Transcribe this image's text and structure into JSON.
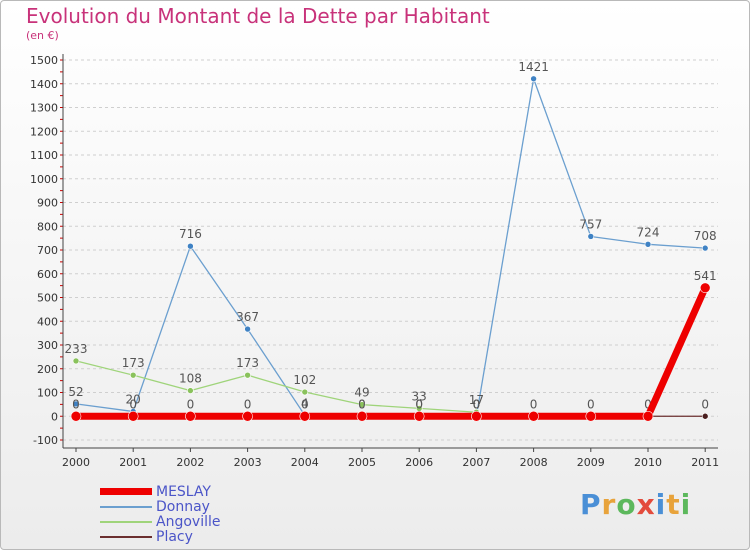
{
  "title": "Evolution du Montant de la Dette par Habitant",
  "subtitle": "(en €)",
  "logo": {
    "letters": [
      "P",
      "r",
      "o",
      "x",
      "i",
      "t",
      "i"
    ],
    "colors": [
      "#4a8fd6",
      "#e8a33b",
      "#5cb85c",
      "#e34b3c",
      "#4a8fd6",
      "#e8a33b",
      "#5cb85c"
    ]
  },
  "colors": {
    "title": "#c8327a",
    "axis_ticks": "#cc0000",
    "legend_text": "#4b55c8"
  },
  "chart_data": {
    "type": "line",
    "categories": [
      "2000",
      "2001",
      "2002",
      "2003",
      "2004",
      "2005",
      "2006",
      "2007",
      "2008",
      "2009",
      "2010",
      "2011"
    ],
    "ylim": [
      -100,
      1500
    ],
    "yticks": [
      -100,
      0,
      100,
      200,
      300,
      400,
      500,
      600,
      700,
      800,
      900,
      1000,
      1100,
      1200,
      1300,
      1400,
      1500
    ],
    "grid": "horizontal dashed",
    "legend_position": "bottom-left",
    "series": [
      {
        "name": "Donnay",
        "color": "#6b9fcf",
        "marker_color": "#3f82c4",
        "line_width": 1.3,
        "values": [
          52,
          20,
          716,
          367,
          4,
          0,
          0,
          0,
          1421,
          757,
          724,
          708
        ],
        "labels": [
          "52",
          "20",
          "716",
          "367",
          "4",
          "0",
          "0",
          "0",
          "1421",
          "757",
          "724",
          "708"
        ]
      },
      {
        "name": "Angoville",
        "color": "#9fd47a",
        "marker_color": "#8ac25c",
        "line_width": 1.3,
        "values": [
          233,
          173,
          108,
          173,
          102,
          49,
          33,
          17,
          null,
          null,
          null,
          null
        ],
        "labels": [
          "233",
          "173",
          "108",
          "173",
          "102",
          "49",
          "33",
          "17",
          "",
          "",
          "",
          ""
        ]
      },
      {
        "name": "Placy",
        "color": "#6b2f2f",
        "marker_color": "#4a1e1e",
        "line_width": 1.3,
        "values": [
          0,
          0,
          0,
          0,
          0,
          0,
          0,
          0,
          0,
          0,
          0,
          0
        ],
        "labels": [
          "0",
          "0",
          "0",
          "0",
          "0",
          "0",
          "0",
          "0",
          "0",
          "0",
          "0",
          "0"
        ]
      },
      {
        "name": "MESLAY",
        "color": "#ee0000",
        "marker_color": "#ee0000",
        "line_width": 7,
        "values": [
          0,
          0,
          0,
          0,
          0,
          0,
          0,
          0,
          0,
          0,
          0,
          541
        ],
        "labels": [
          "",
          "",
          "",
          "",
          "",
          "",
          "",
          "",
          "",
          "",
          "",
          "541"
        ]
      }
    ],
    "legend": [
      "MESLAY",
      "Donnay",
      "Angoville",
      "Placy"
    ]
  }
}
